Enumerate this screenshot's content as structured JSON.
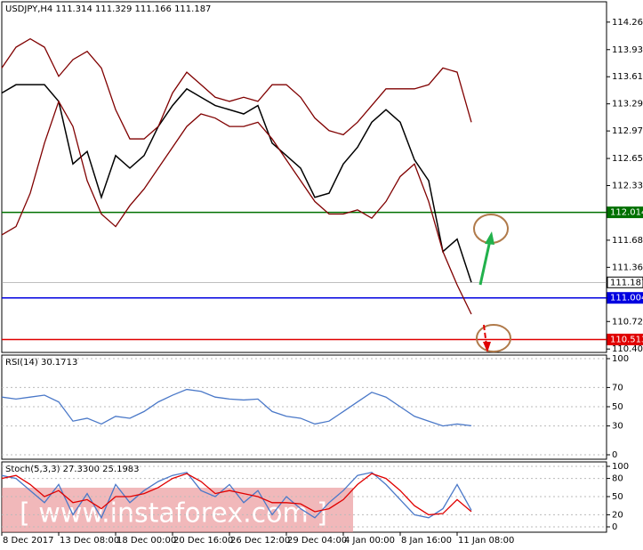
{
  "chart_data": [
    {
      "type": "line",
      "title": "USDJPY,H4  111.314 111.329 111.166 111.187",
      "ylim": [
        110.36,
        114.5
      ],
      "yticks": [
        {
          "value": 114.26,
          "label": "114.260"
        },
        113.935,
        113.615,
        113.295,
        112.975,
        {
          "value": 112.65,
          "label": "112.650"
        },
        {
          "value": 112.33,
          "label": "112.330"
        },
        111.685,
        111.365,
        110.725,
        {
          "value": 110.4,
          "label": "110.400"
        }
      ],
      "levels": [
        {
          "value": 112.014,
          "color": "#007000"
        },
        {
          "value": 111.187,
          "color": "#ffffff"
        },
        {
          "value": 111.004,
          "color": "#0000e0"
        },
        {
          "value": 110.513,
          "color": "#e00000"
        }
      ],
      "series": [
        {
          "color": "#000000",
          "values": [
            113.423,
            113.521,
            113.521,
            113.521,
            113.324,
            112.585,
            112.733,
            112.191,
            112.684,
            112.536,
            112.684,
            113.028,
            113.275,
            113.472,
            113.373,
            113.275,
            113.226,
            113.176,
            113.275,
            112.831,
            112.684,
            112.536,
            112.191,
            112.24,
            112.585,
            112.782,
            113.078,
            113.226,
            113.078,
            112.634,
            112.388,
            111.551,
            111.698,
            111.187
          ]
        },
        {
          "color": "#800000",
          "values": [
            113.718,
            113.964,
            114.063,
            113.964,
            113.62,
            113.817,
            113.915,
            113.718,
            113.226,
            112.881,
            112.881,
            113.028,
            113.423,
            113.669,
            113.521,
            113.373,
            113.324,
            113.373,
            113.324,
            113.521,
            113.521,
            113.373,
            113.127,
            112.979,
            112.93,
            113.078,
            113.275,
            113.472,
            113.472,
            113.472,
            113.521,
            113.718,
            113.669,
            113.078
          ]
        },
        {
          "color": "#800000",
          "values": [
            111.748,
            111.846,
            112.24,
            112.831,
            113.324,
            113.028,
            112.388,
            111.994,
            111.846,
            112.093,
            112.29,
            112.536,
            112.782,
            113.028,
            113.176,
            113.127,
            113.028,
            113.028,
            113.078,
            112.881,
            112.634,
            112.388,
            112.142,
            111.994,
            111.994,
            112.043,
            111.945,
            112.142,
            112.437,
            112.585,
            112.142,
            111.551,
            111.157,
            110.812
          ]
        }
      ]
    },
    {
      "type": "line",
      "title": "RSI(14) 30.1713",
      "ylim": [
        0,
        100
      ],
      "yticks": [
        100,
        70,
        50,
        30,
        0
      ],
      "series": [
        {
          "color": "#4a78c8",
          "values": [
            60,
            58,
            60,
            62,
            55,
            35,
            38,
            32,
            40,
            38,
            45,
            55,
            62,
            68,
            66,
            60,
            58,
            57,
            58,
            45,
            40,
            38,
            32,
            35,
            45,
            55,
            65,
            60,
            50,
            40,
            35,
            30,
            32,
            30.1713
          ]
        }
      ]
    },
    {
      "type": "line",
      "title": "Stoch(5,3,3) 27.3300 25.1983",
      "ylim": [
        0,
        100
      ],
      "yticks": [
        100,
        80,
        50,
        20,
        0
      ],
      "categories": [
        "8 Dec 2017",
        null,
        null,
        null,
        "13 Dec 08:00",
        null,
        null,
        null,
        "18 Dec 00:00",
        null,
        null,
        null,
        "20 Dec 16:00",
        null,
        null,
        null,
        "26 Dec 12:00",
        null,
        null,
        null,
        "29 Dec 04:00",
        null,
        null,
        null,
        "4 Jan 00:00",
        null,
        null,
        null,
        "8 Jan 16:00",
        null,
        null,
        null,
        "11 Jan 08:00",
        null
      ],
      "annotation": "[ www.instaforex.com ]",
      "series": [
        {
          "color": "#4a78c8",
          "values": [
            85,
            80,
            60,
            40,
            70,
            20,
            55,
            15,
            70,
            40,
            60,
            75,
            85,
            90,
            60,
            50,
            70,
            40,
            60,
            20,
            50,
            30,
            15,
            40,
            60,
            85,
            90,
            70,
            45,
            20,
            15,
            30,
            70,
            27.33
          ]
        },
        {
          "color": "#e00000",
          "values": [
            80,
            85,
            70,
            50,
            60,
            40,
            45,
            30,
            50,
            50,
            55,
            65,
            80,
            88,
            75,
            55,
            60,
            55,
            50,
            40,
            40,
            38,
            25,
            30,
            45,
            70,
            88,
            80,
            60,
            35,
            20,
            22,
            45,
            25.1983
          ]
        }
      ]
    }
  ]
}
